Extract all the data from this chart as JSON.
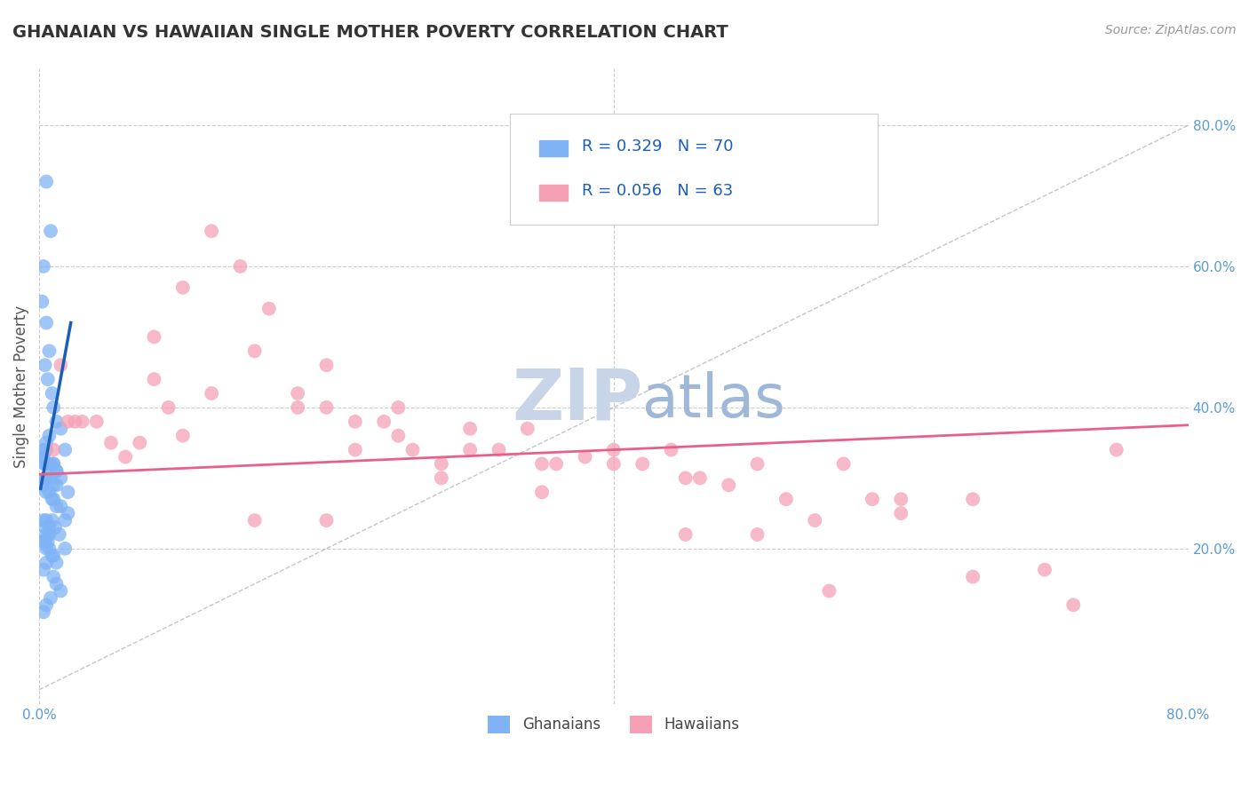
{
  "title": "GHANAIAN VS HAWAIIAN SINGLE MOTHER POVERTY CORRELATION CHART",
  "source_text": "Source: ZipAtlas.com",
  "ylabel": "Single Mother Poverty",
  "xlim": [
    0.0,
    0.8
  ],
  "ylim": [
    -0.02,
    0.88
  ],
  "ghanaian_color": "#7fb3f5",
  "hawaiian_color": "#f5a0b5",
  "trend_ghanaian_color": "#1a5eb8",
  "trend_hawaiian_color": "#e8608a",
  "diagonal_color": "#b0b8c8",
  "watermark_zip_color": "#c8d4e8",
  "watermark_atlas_color": "#a0b8d8",
  "grid_color": "#cccccc",
  "title_color": "#333333",
  "axis_label_color": "#5b9bd5",
  "legend_text_color": "#1a5eb8",
  "background_color": "#ffffff",
  "ghanaians_scatter_x": [
    0.005,
    0.008,
    0.003,
    0.002,
    0.005,
    0.007,
    0.004,
    0.006,
    0.009,
    0.01,
    0.012,
    0.015,
    0.007,
    0.005,
    0.003,
    0.002,
    0.004,
    0.006,
    0.01,
    0.012,
    0.015,
    0.008,
    0.01,
    0.012,
    0.02,
    0.018,
    0.005,
    0.003,
    0.004,
    0.007,
    0.01,
    0.012,
    0.005,
    0.004,
    0.002,
    0.003,
    0.005,
    0.007,
    0.009,
    0.01,
    0.012,
    0.015,
    0.02,
    0.018,
    0.005,
    0.003,
    0.004,
    0.007,
    0.007,
    0.005,
    0.004,
    0.003,
    0.005,
    0.007,
    0.009,
    0.01,
    0.012,
    0.005,
    0.003,
    0.01,
    0.012,
    0.015,
    0.008,
    0.005,
    0.003,
    0.009,
    0.011,
    0.014,
    0.006,
    0.018
  ],
  "ghanaians_scatter_y": [
    0.72,
    0.65,
    0.6,
    0.55,
    0.52,
    0.48,
    0.46,
    0.44,
    0.42,
    0.4,
    0.38,
    0.37,
    0.36,
    0.35,
    0.34,
    0.33,
    0.32,
    0.32,
    0.32,
    0.31,
    0.3,
    0.3,
    0.29,
    0.29,
    0.28,
    0.34,
    0.34,
    0.33,
    0.32,
    0.32,
    0.32,
    0.31,
    0.3,
    0.3,
    0.29,
    0.29,
    0.28,
    0.28,
    0.27,
    0.27,
    0.26,
    0.26,
    0.25,
    0.24,
    0.24,
    0.24,
    0.23,
    0.23,
    0.22,
    0.22,
    0.21,
    0.21,
    0.2,
    0.2,
    0.19,
    0.19,
    0.18,
    0.18,
    0.17,
    0.16,
    0.15,
    0.14,
    0.13,
    0.12,
    0.11,
    0.24,
    0.23,
    0.22,
    0.21,
    0.2
  ],
  "hawaiians_scatter_x": [
    0.01,
    0.015,
    0.02,
    0.025,
    0.03,
    0.04,
    0.05,
    0.06,
    0.07,
    0.08,
    0.09,
    0.1,
    0.12,
    0.14,
    0.16,
    0.18,
    0.2,
    0.22,
    0.24,
    0.26,
    0.28,
    0.3,
    0.32,
    0.34,
    0.36,
    0.38,
    0.4,
    0.42,
    0.44,
    0.46,
    0.48,
    0.5,
    0.52,
    0.54,
    0.56,
    0.58,
    0.6,
    0.65,
    0.7,
    0.75,
    0.1,
    0.15,
    0.2,
    0.25,
    0.3,
    0.35,
    0.4,
    0.45,
    0.5,
    0.35,
    0.25,
    0.2,
    0.15,
    0.45,
    0.55,
    0.6,
    0.65,
    0.72,
    0.08,
    0.12,
    0.18,
    0.22,
    0.28
  ],
  "hawaiians_scatter_y": [
    0.34,
    0.46,
    0.38,
    0.38,
    0.38,
    0.38,
    0.35,
    0.33,
    0.35,
    0.44,
    0.4,
    0.36,
    0.65,
    0.6,
    0.54,
    0.4,
    0.4,
    0.38,
    0.38,
    0.34,
    0.32,
    0.37,
    0.34,
    0.37,
    0.32,
    0.33,
    0.32,
    0.32,
    0.34,
    0.3,
    0.29,
    0.22,
    0.27,
    0.24,
    0.32,
    0.27,
    0.25,
    0.16,
    0.17,
    0.34,
    0.57,
    0.48,
    0.46,
    0.4,
    0.34,
    0.32,
    0.34,
    0.3,
    0.32,
    0.28,
    0.36,
    0.24,
    0.24,
    0.22,
    0.14,
    0.27,
    0.27,
    0.12,
    0.5,
    0.42,
    0.42,
    0.34,
    0.3
  ],
  "ghanaian_trend_x": [
    0.001,
    0.022
  ],
  "ghanaian_trend_y": [
    0.285,
    0.52
  ],
  "hawaiian_trend_x": [
    0.0,
    0.8
  ],
  "hawaiian_trend_y": [
    0.305,
    0.375
  ]
}
